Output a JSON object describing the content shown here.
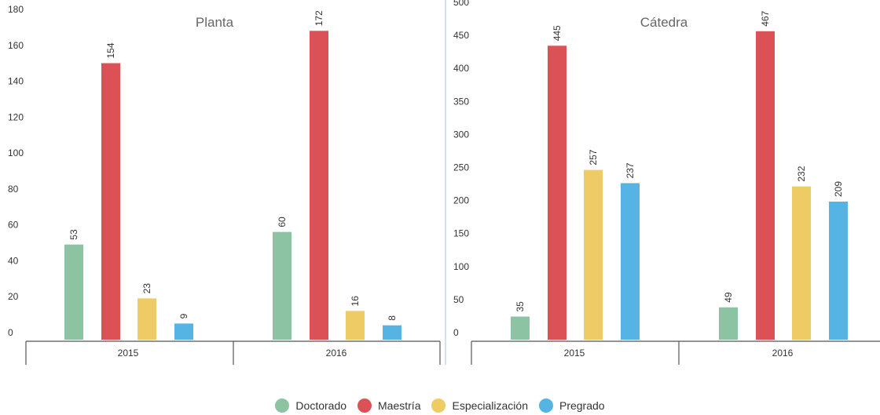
{
  "colors": {
    "Doctorado": "#8cc3a3",
    "Maestría": "#dc5155",
    "Especialización": "#eecb65",
    "Pregrado": "#56b4e4"
  },
  "legend": [
    "Doctorado",
    "Maestría",
    "Especialización",
    "Pregrado"
  ],
  "chart_data": [
    {
      "type": "bar",
      "title": "Planta",
      "categories": [
        "2015",
        "2016"
      ],
      "ylim": [
        0,
        180
      ],
      "yticks": [
        0,
        20,
        40,
        60,
        80,
        100,
        120,
        140,
        160,
        180
      ],
      "series": [
        {
          "name": "Doctorado",
          "values": [
            53,
            60
          ]
        },
        {
          "name": "Maestría",
          "values": [
            154,
            172
          ]
        },
        {
          "name": "Especialización",
          "values": [
            23,
            16
          ]
        },
        {
          "name": "Pregrado",
          "values": [
            9,
            8
          ]
        }
      ]
    },
    {
      "type": "bar",
      "title": "Cátedra",
      "categories": [
        "2015",
        "2016"
      ],
      "ylim": [
        0,
        500
      ],
      "yticks": [
        0,
        50,
        100,
        150,
        200,
        250,
        300,
        350,
        400,
        450,
        500
      ],
      "series": [
        {
          "name": "Doctorado",
          "values": [
            35,
            49
          ]
        },
        {
          "name": "Maestría",
          "values": [
            445,
            467
          ]
        },
        {
          "name": "Especialización",
          "values": [
            257,
            232
          ]
        },
        {
          "name": "Pregrado",
          "values": [
            237,
            209
          ]
        }
      ]
    }
  ]
}
